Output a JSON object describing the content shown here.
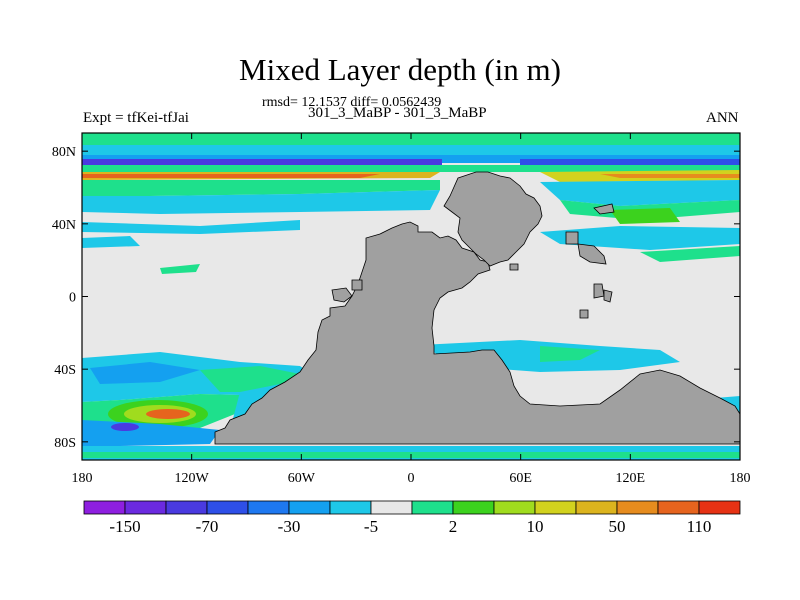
{
  "chart_data": {
    "type": "heatmap",
    "title": "Mixed Layer depth (in m)",
    "annotation_rmsd": "rmsd= 12.1537 diff= 0.0562439",
    "subtitle": "301_3_MaBP - 301_3_MaBP",
    "left_label": "Expt = tfKei-tfJai",
    "right_label": "ANN",
    "xlim": [
      -180,
      180
    ],
    "ylim": [
      -90,
      90
    ],
    "x_ticks": [
      {
        "value": -180,
        "label": "180"
      },
      {
        "value": -120,
        "label": "120W"
      },
      {
        "value": -60,
        "label": "60W"
      },
      {
        "value": 0,
        "label": "0"
      },
      {
        "value": 60,
        "label": "60E"
      },
      {
        "value": 120,
        "label": "120E"
      },
      {
        "value": 180,
        "label": "180"
      }
    ],
    "y_ticks": [
      {
        "value": 80,
        "label": "80N"
      },
      {
        "value": 40,
        "label": "40N"
      },
      {
        "value": 0,
        "label": "0"
      },
      {
        "value": -40,
        "label": "40S"
      },
      {
        "value": -80,
        "label": "80S"
      }
    ],
    "colorbar": {
      "colors": [
        "#8e1fe0",
        "#6b2ae0",
        "#4a3ae0",
        "#2e4fe8",
        "#1e78f0",
        "#14a0f0",
        "#1ec8e8",
        "#e8e8e8",
        "#1ee08c",
        "#3cd21e",
        "#a0dc1e",
        "#d2d21e",
        "#dcb41e",
        "#e68c1e",
        "#e6641e",
        "#e63214"
      ],
      "labels": [
        {
          "value": "-150",
          "position": 1
        },
        {
          "value": "-70",
          "position": 3
        },
        {
          "value": "-30",
          "position": 5
        },
        {
          "value": "-5",
          "position": 7
        },
        {
          "value": "2",
          "position": 9
        },
        {
          "value": "10",
          "position": 11
        },
        {
          "value": "50",
          "position": 13
        },
        {
          "value": "110",
          "position": 15
        }
      ]
    },
    "land_color": "#a0a0a0",
    "background_color": "#e8e8e8"
  }
}
